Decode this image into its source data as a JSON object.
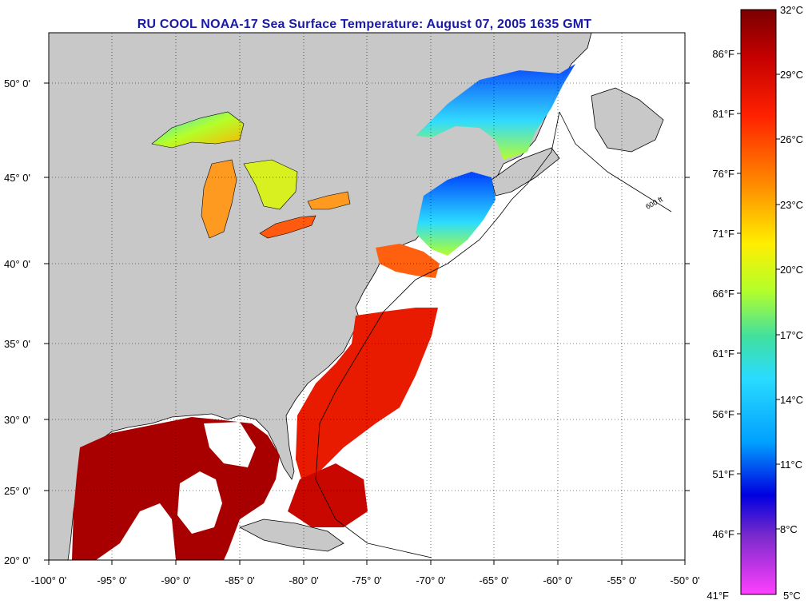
{
  "title": "RU COOL  NOAA-17  Sea Surface Temperature:  August 07, 2005 1635 GMT",
  "lat_labels": [
    "50° 0'",
    "45° 0'",
    "40° 0'",
    "35° 0'",
    "30° 0'",
    "25° 0'",
    "20° 0'"
  ],
  "lon_labels": [
    "-100° 0'",
    "-95° 0'",
    "-90° 0'",
    "-85° 0'",
    "-80° 0'",
    "-75° 0'",
    "-70° 0'",
    "-65° 0'",
    "-60° 0'",
    "-55° 0'",
    "-50° 0'"
  ],
  "isobath_label": "600 ft",
  "colorbar": {
    "celsius": [
      "32°C",
      "29°C",
      "26°C",
      "23°C",
      "20°C",
      "17°C",
      "14°C",
      "11°C",
      "8°C",
      "5°C"
    ],
    "fahrenheit": [
      "86°F",
      "81°F",
      "76°F",
      "71°F",
      "66°F",
      "61°F",
      "56°F",
      "51°F",
      "46°F",
      "41°F"
    ]
  },
  "colors": {
    "land": "#c8c8c8",
    "title": "#1a1aa8",
    "scale": [
      "#7a0000",
      "#c40000",
      "#ff2000",
      "#ff8c00",
      "#ffee00",
      "#b4ff2a",
      "#2adcff",
      "#00b4ff",
      "#0050ff",
      "#0000e0",
      "#7a2acc",
      "#ff40ff"
    ]
  }
}
